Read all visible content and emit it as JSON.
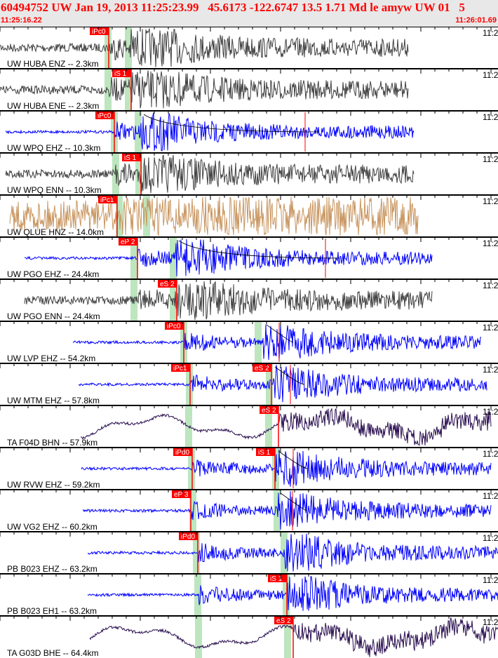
{
  "header": {
    "title": "60494752 UW Jan 19, 2013 11:25:23.99   45.6173 -122.6747 13.5 1.71 Md le amyw UW 01   5",
    "start_time": "11:25:16.22",
    "end_time": "11:26:01.69"
  },
  "panel_time_label": "11:2",
  "colors": {
    "pick": "#ff0000",
    "window": "#bde5be",
    "blue": "#0000ff",
    "gray": "#404040",
    "tan": "#c8955f",
    "purple": "#2a0f50"
  },
  "panels": [
    {
      "label": "UW HUBA ENZ -- 2.3km",
      "color": "gray",
      "picks": [
        "iPc0"
      ]
    },
    {
      "label": "UW HUBA ENE -- 2.3km",
      "color": "gray",
      "picks": [
        "iS 1"
      ]
    },
    {
      "label": "UW WPQ EHZ -- 10.3km",
      "color": "blue",
      "picks": [
        "iPc0"
      ]
    },
    {
      "label": "UW WPQ ENN -- 10.3km",
      "color": "gray",
      "picks": [
        "iS 1"
      ]
    },
    {
      "label": "UW QLUE HNZ -- 14.0km",
      "color": "tan",
      "picks": [
        "iPc1"
      ]
    },
    {
      "label": "UW PGO EHZ -- 24.4km",
      "color": "blue",
      "picks": [
        "eP 2"
      ]
    },
    {
      "label": "UW PGO ENN -- 24.4km",
      "color": "gray",
      "picks": [
        "eS 2"
      ]
    },
    {
      "label": "UW LVP EHZ -- 54.2km",
      "color": "blue",
      "picks": [
        "iPc0"
      ]
    },
    {
      "label": "UW MTM EHZ -- 57.8km",
      "color": "blue",
      "picks": [
        "iPc1",
        "eS 2"
      ]
    },
    {
      "label": "TA F04D BHN -- 57.9km",
      "color": "purple",
      "picks": [
        "eS 2"
      ]
    },
    {
      "label": "UW RVW EHZ -- 59.2km",
      "color": "blue",
      "picks": [
        "iPd0",
        "iS 1"
      ]
    },
    {
      "label": "UW VG2 EHZ -- 60.2km",
      "color": "blue",
      "picks": [
        "eP 3"
      ]
    },
    {
      "label": "PB B023 EHZ -- 63.2km",
      "color": "blue",
      "picks": [
        "iPd0"
      ]
    },
    {
      "label": "PB B023 EH1 -- 63.2km",
      "color": "blue",
      "picks": [
        "iS 1"
      ]
    },
    {
      "label": "TA G03D BHE -- 64.4km",
      "color": "purple",
      "picks": [
        "eS 2"
      ]
    }
  ]
}
